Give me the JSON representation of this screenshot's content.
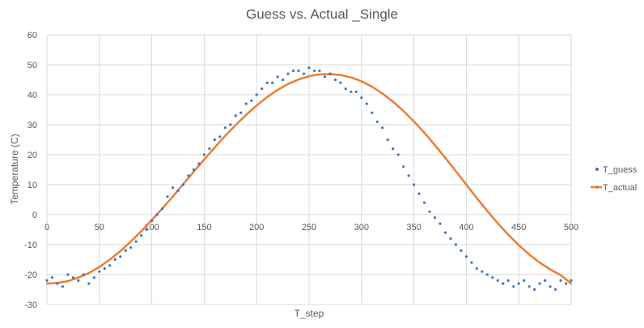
{
  "chart_data": {
    "type": "scatter",
    "title": "Guess vs. Actual _Single",
    "xlabel": "T_step",
    "ylabel": "Temperature (C)",
    "xlim": [
      0,
      500
    ],
    "ylim": [
      -30,
      60
    ],
    "x_ticks": [
      0,
      50,
      100,
      150,
      200,
      250,
      300,
      350,
      400,
      450,
      500
    ],
    "y_ticks": [
      -30,
      -20,
      -10,
      0,
      10,
      20,
      30,
      40,
      50,
      60
    ],
    "grid": true,
    "legend_position": "right",
    "series": [
      {
        "name": "T_guess",
        "color": "#4472C4",
        "marker": "dot",
        "x": [
          0,
          5,
          10,
          15,
          20,
          25,
          30,
          35,
          40,
          45,
          50,
          55,
          60,
          65,
          70,
          75,
          80,
          85,
          90,
          95,
          100,
          105,
          110,
          115,
          120,
          125,
          130,
          135,
          140,
          145,
          150,
          155,
          160,
          165,
          170,
          175,
          180,
          185,
          190,
          195,
          200,
          205,
          210,
          215,
          220,
          225,
          230,
          235,
          240,
          245,
          250,
          255,
          260,
          265,
          270,
          275,
          280,
          285,
          290,
          295,
          300,
          305,
          310,
          315,
          320,
          325,
          330,
          335,
          340,
          345,
          350,
          355,
          360,
          365,
          370,
          375,
          380,
          385,
          390,
          395,
          400,
          405,
          410,
          415,
          420,
          425,
          430,
          435,
          440,
          445,
          450,
          455,
          460,
          465,
          470,
          475,
          480,
          485,
          490,
          495,
          500
        ],
        "y": [
          -22,
          -21,
          -23,
          -24,
          -20,
          -21,
          -22,
          -20,
          -23,
          -21,
          -19,
          -18,
          -17,
          -15,
          -14,
          -12,
          -11,
          -9,
          -7,
          -5,
          -2,
          0,
          2,
          6,
          9,
          8,
          10,
          13,
          15,
          17,
          20,
          22,
          25,
          26,
          29,
          30,
          33,
          34,
          37,
          38,
          40,
          42,
          44,
          44,
          46,
          45,
          47,
          48,
          48,
          47,
          49,
          48,
          48,
          46,
          47,
          45,
          44,
          42,
          41,
          41,
          39,
          37,
          34,
          31,
          29,
          25,
          22,
          20,
          16,
          13,
          10,
          7,
          4,
          1,
          -1,
          -3,
          -6,
          -8,
          -10,
          -12,
          -14,
          -16,
          -18,
          -19,
          -20,
          -21,
          -22,
          -23,
          -22,
          -24,
          -23,
          -22,
          -24,
          -25,
          -23,
          -22,
          -24,
          -25,
          -22,
          -23,
          -22
        ]
      },
      {
        "name": "T_actual",
        "color": "#ED7D31",
        "marker": "line",
        "x": [
          0,
          10,
          20,
          30,
          40,
          50,
          60,
          70,
          80,
          90,
          100,
          110,
          120,
          130,
          140,
          150,
          160,
          170,
          180,
          190,
          200,
          210,
          220,
          230,
          240,
          250,
          260,
          270,
          280,
          290,
          300,
          310,
          320,
          330,
          340,
          350,
          360,
          370,
          380,
          390,
          400,
          410,
          420,
          430,
          440,
          450,
          460,
          470,
          480,
          490,
          500
        ],
        "y": [
          -23.0,
          -22.8,
          -22.2,
          -21.0,
          -19.5,
          -17.5,
          -15.0,
          -12.2,
          -9.0,
          -5.5,
          -1.8,
          2.0,
          6.0,
          10.2,
          14.3,
          18.4,
          22.4,
          26.3,
          29.9,
          33.3,
          36.4,
          39.2,
          41.6,
          43.6,
          45.1,
          46.2,
          46.8,
          46.9,
          46.6,
          45.8,
          44.5,
          42.7,
          40.4,
          37.7,
          34.6,
          31.1,
          27.3,
          23.2,
          18.9,
          14.5,
          10.0,
          5.5,
          1.2,
          -2.9,
          -6.7,
          -10.2,
          -13.3,
          -16.0,
          -18.3,
          -20.2,
          -23.0
        ]
      }
    ]
  }
}
